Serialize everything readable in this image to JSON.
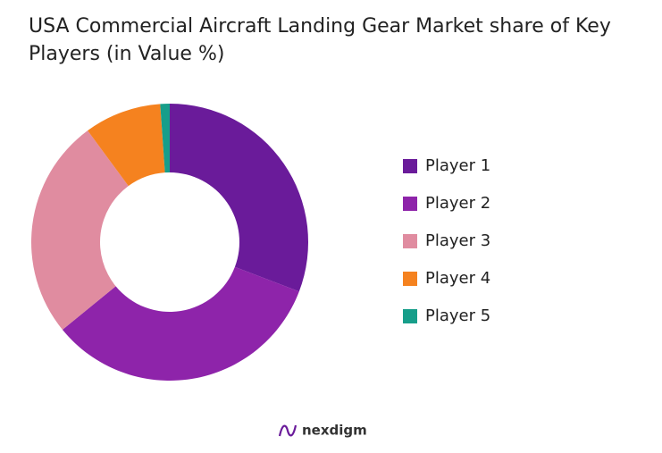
{
  "chart_data": {
    "type": "pie",
    "title": "USA Commercial Aircraft Landing Gear Market share of Key Players (in Value %)",
    "categories": [
      "Player 1",
      "Player 2",
      "Player 3",
      "Player 4",
      "Player 5"
    ],
    "values": [
      30.8,
      33.3,
      25.8,
      9.0,
      1.1
    ],
    "colors": [
      "#6a1b9a",
      "#8e24aa",
      "#e08ca0",
      "#f5821f",
      "#179e8a"
    ],
    "donut": true,
    "legend": "right"
  },
  "brand": "nexdigm"
}
